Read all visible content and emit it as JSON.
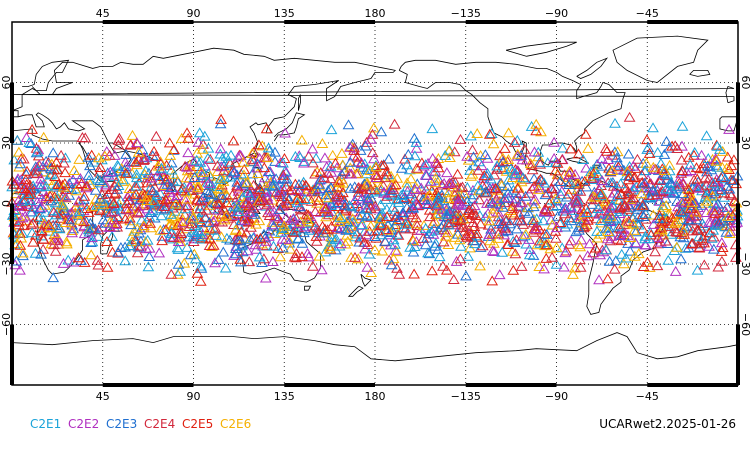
{
  "legend": [
    {
      "label": "C2E1",
      "color": "#1aa3d9"
    },
    {
      "label": "C2E2",
      "color": "#b030c0"
    },
    {
      "label": "C2E3",
      "color": "#1f6fd0"
    },
    {
      "label": "C2E4",
      "color": "#d2283c"
    },
    {
      "label": "C2E5",
      "color": "#e02010"
    },
    {
      "label": "C2E6",
      "color": "#f5b000"
    }
  ],
  "product_label": "UCARwet2.2025-01-26",
  "map": {
    "projection": "cylindrical-equidistant",
    "lon_center": 180,
    "lon_range": [
      0,
      360
    ],
    "lat_range": [
      -90,
      90
    ],
    "lon_ticks": [
      {
        "value": 45,
        "label": "45"
      },
      {
        "value": 90,
        "label": "90"
      },
      {
        "value": 135,
        "label": "135"
      },
      {
        "value": 180,
        "label": "180"
      },
      {
        "value": 225,
        "label": "−135"
      },
      {
        "value": 270,
        "label": "−90"
      },
      {
        "value": 315,
        "label": "−45"
      }
    ],
    "lat_ticks": [
      {
        "value": 60,
        "label": "60"
      },
      {
        "value": 30,
        "label": "30"
      },
      {
        "value": 0,
        "label": "0"
      },
      {
        "value": -30,
        "label": "−30"
      },
      {
        "value": -60,
        "label": "−60"
      }
    ],
    "grid": "dotted",
    "marker": "open-triangle",
    "observation_lat_band": [
      -45,
      45
    ]
  }
}
